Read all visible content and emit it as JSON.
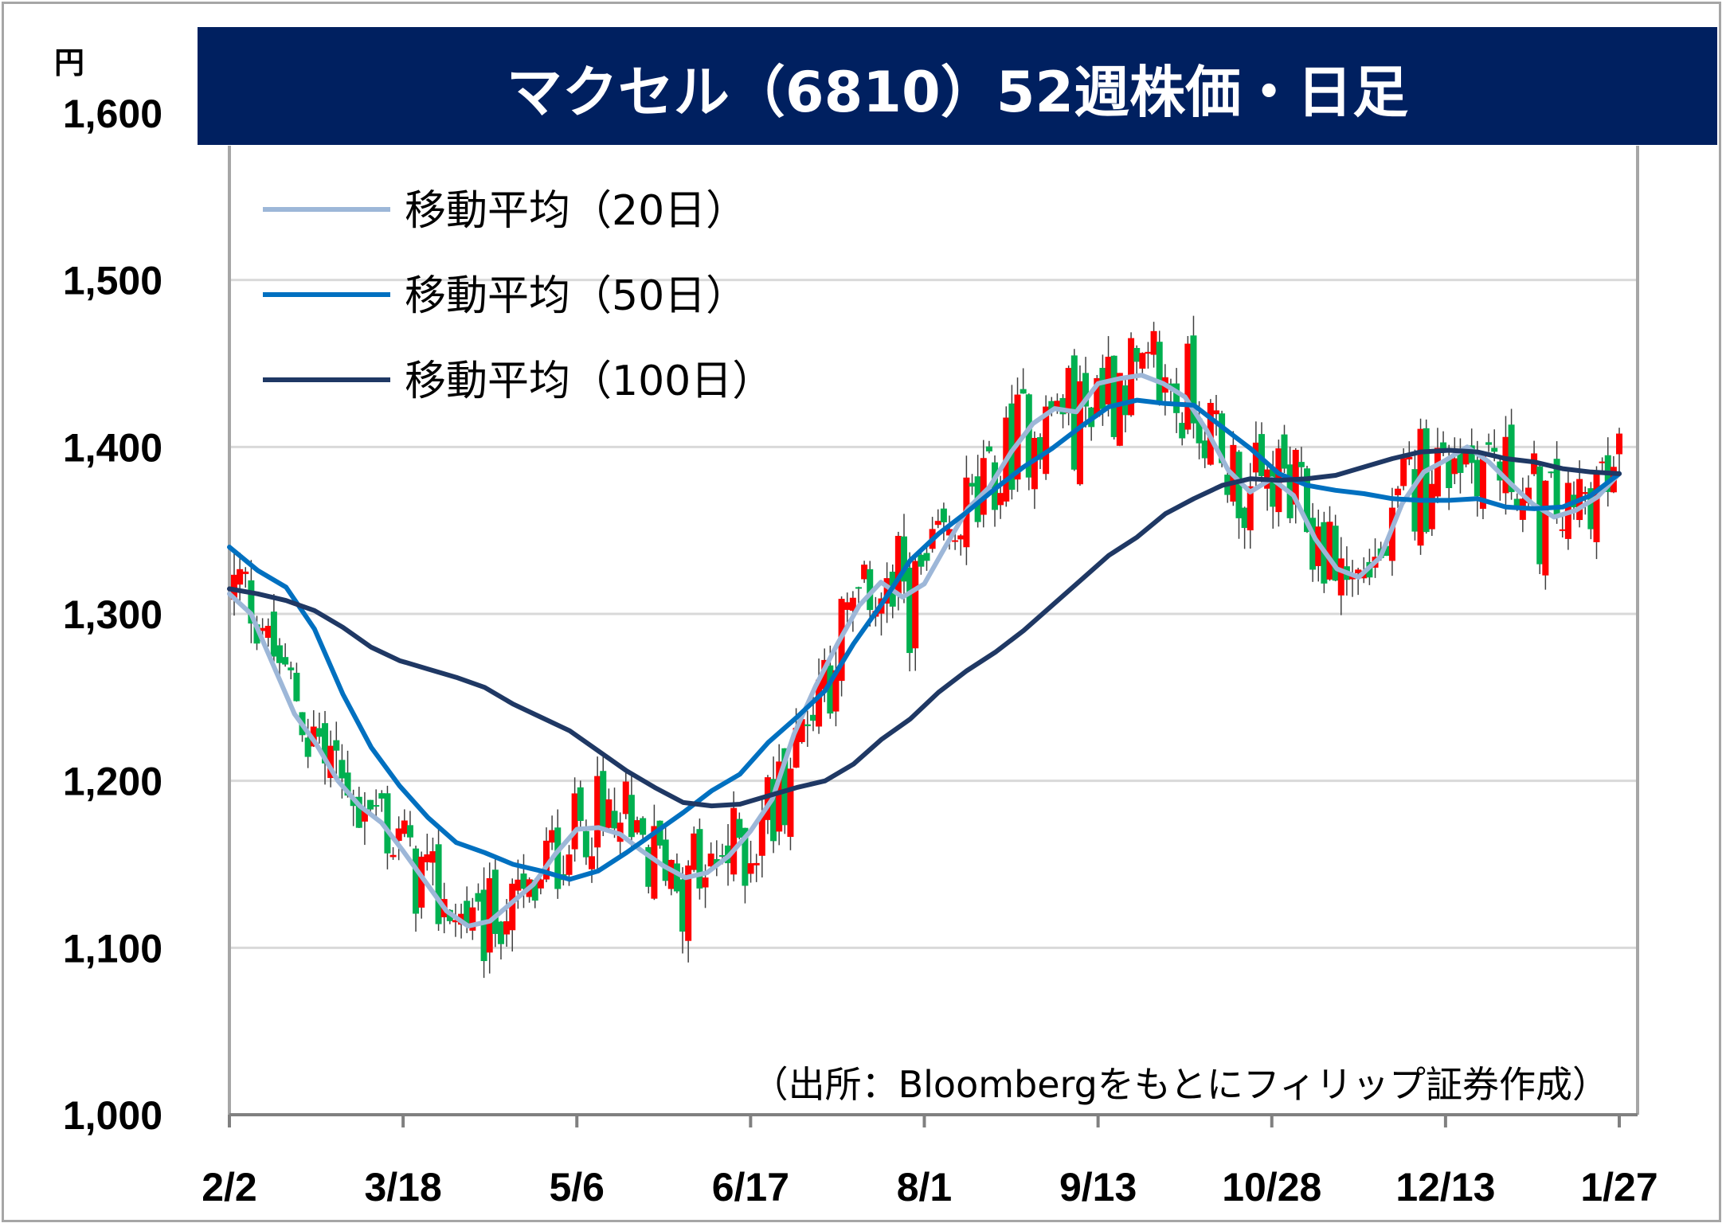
{
  "chart_data": {
    "type": "candlestick",
    "title": "マクセル（6810）52週株価・日足",
    "unit": "円",
    "source": "（出所：Bloombergをもとにフィリップ証券作成）",
    "ylim": [
      1000,
      1600
    ],
    "yticks": [
      1000,
      1100,
      1200,
      1300,
      1400,
      1500,
      1600
    ],
    "ytick_labels": [
      "1,000",
      "1,100",
      "1,200",
      "1,300",
      "1,400",
      "1,500",
      "1,600"
    ],
    "grid": true,
    "legend_position": "top-left",
    "xtick_labels": [
      "2/2",
      "3/18",
      "5/6",
      "6/17",
      "8/1",
      "9/13",
      "10/28",
      "12/13",
      "1/27"
    ],
    "colors": {
      "up": "#ff0000",
      "down": "#00b050",
      "title_bg": "#002060",
      "ma20": "#9db7d8",
      "ma50": "#0070c0",
      "ma100": "#1f3864",
      "grid": "#d9d9d9"
    },
    "series": [
      {
        "name": "移動平均（20日）",
        "color": "#9db7d8",
        "values": [
          1312,
          1300,
          1270,
          1240,
          1222,
          1200,
          1185,
          1175,
          1158,
          1140,
          1122,
          1113,
          1116,
          1127,
          1138,
          1156,
          1171,
          1172,
          1168,
          1158,
          1149,
          1142,
          1145,
          1155,
          1170,
          1189,
          1228,
          1257,
          1282,
          1305,
          1319,
          1310,
          1318,
          1341,
          1363,
          1376,
          1397,
          1414,
          1423,
          1421,
          1438,
          1441,
          1443,
          1438,
          1430,
          1410,
          1386,
          1373,
          1381,
          1371,
          1345,
          1327,
          1322,
          1334,
          1366,
          1385,
          1392,
          1400,
          1391,
          1378,
          1366,
          1358,
          1362,
          1370,
          1384
        ]
      },
      {
        "name": "移動平均（50日）",
        "color": "#0070c0",
        "values": [
          1340,
          1326,
          1316,
          1291,
          1252,
          1220,
          1197,
          1178,
          1163,
          1157,
          1150,
          1146,
          1141,
          1146,
          1157,
          1169,
          1181,
          1194,
          1204,
          1223,
          1238,
          1254,
          1282,
          1306,
          1332,
          1348,
          1361,
          1375,
          1388,
          1399,
          1412,
          1424,
          1428,
          1426,
          1425,
          1412,
          1399,
          1384,
          1377,
          1374,
          1372,
          1369,
          1368,
          1368,
          1369,
          1364,
          1363,
          1364,
          1371,
          1384
        ]
      },
      {
        "name": "移動平均（100日）",
        "color": "#1f3864",
        "values": [
          1315,
          1312,
          1308,
          1302,
          1292,
          1280,
          1272,
          1267,
          1262,
          1256,
          1246,
          1238,
          1230,
          1218,
          1206,
          1196,
          1187,
          1185,
          1186,
          1191,
          1196,
          1200,
          1210,
          1225,
          1237,
          1253,
          1266,
          1277,
          1290,
          1305,
          1320,
          1335,
          1346,
          1360,
          1369,
          1377,
          1381,
          1380,
          1381,
          1383,
          1388,
          1393,
          1397,
          1398,
          1397,
          1393,
          1391,
          1387,
          1385,
          1384
        ]
      }
    ]
  }
}
